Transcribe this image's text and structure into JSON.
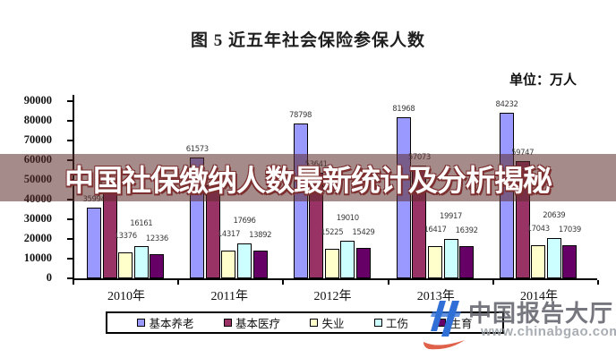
{
  "title": "图 5  近五年社会保险参保人数",
  "unit_label": "单位：万人",
  "banner": {
    "text": "中国社保缴纳人数最新统计及分析揭秘",
    "bg_color": "rgba(92,44,44,0.55)",
    "text_color": "#ffffff",
    "outline_color": "#7d2f2f"
  },
  "watermark": {
    "brand": "中国报告大厅",
    "url": "www.chinabgao.com",
    "brand_color": "#55555f",
    "url_color": "#9aa0a6",
    "swoosh_color": "#e0614a",
    "logo_color": "#2f6fd6"
  },
  "chart_data": {
    "type": "bar",
    "title": "图 5  近五年社会保险参保人数",
    "unit": "万人",
    "categories": [
      "2010年",
      "2011年",
      "2012年",
      "2013年",
      "2014年"
    ],
    "series": [
      {
        "name": "基本养老",
        "color": "#9999FF",
        "values": [
          35994,
          61573,
          78798,
          81968,
          84232
        ]
      },
      {
        "name": "基本医疗",
        "color": "#993366",
        "values": [
          43263,
          47343,
          53641,
          57073,
          59747
        ]
      },
      {
        "name": "失业",
        "color": "#FFFFCC",
        "values": [
          13376,
          14317,
          15225,
          16417,
          17043
        ]
      },
      {
        "name": "工伤",
        "color": "#CCFFFF",
        "values": [
          16161,
          17696,
          19010,
          19917,
          20639
        ]
      },
      {
        "name": "生育",
        "color": "#660066",
        "values": [
          12336,
          13892,
          15429,
          16392,
          17039
        ]
      }
    ],
    "ylim": [
      0,
      90000
    ],
    "ytick_step": 10000,
    "grid": false,
    "data_labels": true,
    "legend_position": "bottom"
  }
}
